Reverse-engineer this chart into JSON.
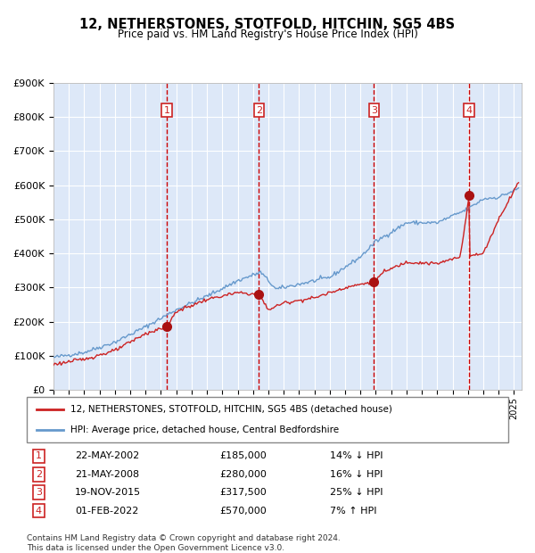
{
  "title": "12, NETHERSTONES, STOTFOLD, HITCHIN, SG5 4BS",
  "subtitle": "Price paid vs. HM Land Registry's House Price Index (HPI)",
  "legend_line1": "12, NETHERSTONES, STOTFOLD, HITCHIN, SG5 4BS (detached house)",
  "legend_line2": "HPI: Average price, detached house, Central Bedfordshire",
  "footnote1": "Contains HM Land Registry data © Crown copyright and database right 2024.",
  "footnote2": "This data is licensed under the Open Government Licence v3.0.",
  "transactions": [
    {
      "num": 1,
      "date": "22-MAY-2002",
      "price": 185000,
      "pct": "14%",
      "dir": "↓",
      "year_x": 2002.38
    },
    {
      "num": 2,
      "date": "21-MAY-2008",
      "price": 280000,
      "pct": "16%",
      "dir": "↓",
      "year_x": 2008.38
    },
    {
      "num": 3,
      "date": "19-NOV-2015",
      "price": 317500,
      "pct": "25%",
      "dir": "↓",
      "year_x": 2015.88
    },
    {
      "num": 4,
      "date": "01-FEB-2022",
      "price": 570000,
      "pct": "7%",
      "dir": "↑",
      "year_x": 2022.08
    }
  ],
  "hpi_key_x": [
    1995,
    1997,
    1999,
    2001,
    2003,
    2005,
    2007,
    2008.5,
    2009.5,
    2011,
    2013,
    2015,
    2016,
    2018,
    2020,
    2021,
    2022,
    2023,
    2024,
    2025.3
  ],
  "hpi_key_y": [
    95000,
    110000,
    140000,
    185000,
    235000,
    275000,
    320000,
    345000,
    295000,
    310000,
    330000,
    390000,
    435000,
    490000,
    490000,
    510000,
    530000,
    560000,
    565000,
    590000
  ],
  "pp_key_x": [
    1995,
    1997,
    1999,
    2001,
    2002.38,
    2003,
    2005,
    2007,
    2008.38,
    2009,
    2010,
    2012,
    2014,
    2015.88,
    2016.5,
    2018,
    2020,
    2021.5,
    2022.08,
    2022.1,
    2022.5,
    2023,
    2024,
    2025.3
  ],
  "pp_key_y": [
    75000,
    90000,
    115000,
    165000,
    185000,
    230000,
    265000,
    285000,
    280000,
    235000,
    255000,
    270000,
    300000,
    317500,
    345000,
    375000,
    370000,
    390000,
    570000,
    395000,
    395000,
    400000,
    500000,
    610000
  ],
  "hpi_color": "#6699cc",
  "price_color": "#cc2222",
  "background_color": "#dde8f8",
  "grid_color": "#ffffff",
  "marker_color": "#aa1111",
  "vline_color": "#cc0000",
  "box_color": "#cc2222",
  "ylim": [
    0,
    900000
  ],
  "xlim_start": 1995,
  "xlim_end": 2025.5,
  "table_rows": [
    [
      "1",
      "22-MAY-2002",
      "£185,000",
      "14% ↓ HPI"
    ],
    [
      "2",
      "21-MAY-2008",
      "£280,000",
      "16% ↓ HPI"
    ],
    [
      "3",
      "19-NOV-2015",
      "£317,500",
      "25% ↓ HPI"
    ],
    [
      "4",
      "01-FEB-2022",
      "£570,000",
      "7% ↑ HPI"
    ]
  ]
}
